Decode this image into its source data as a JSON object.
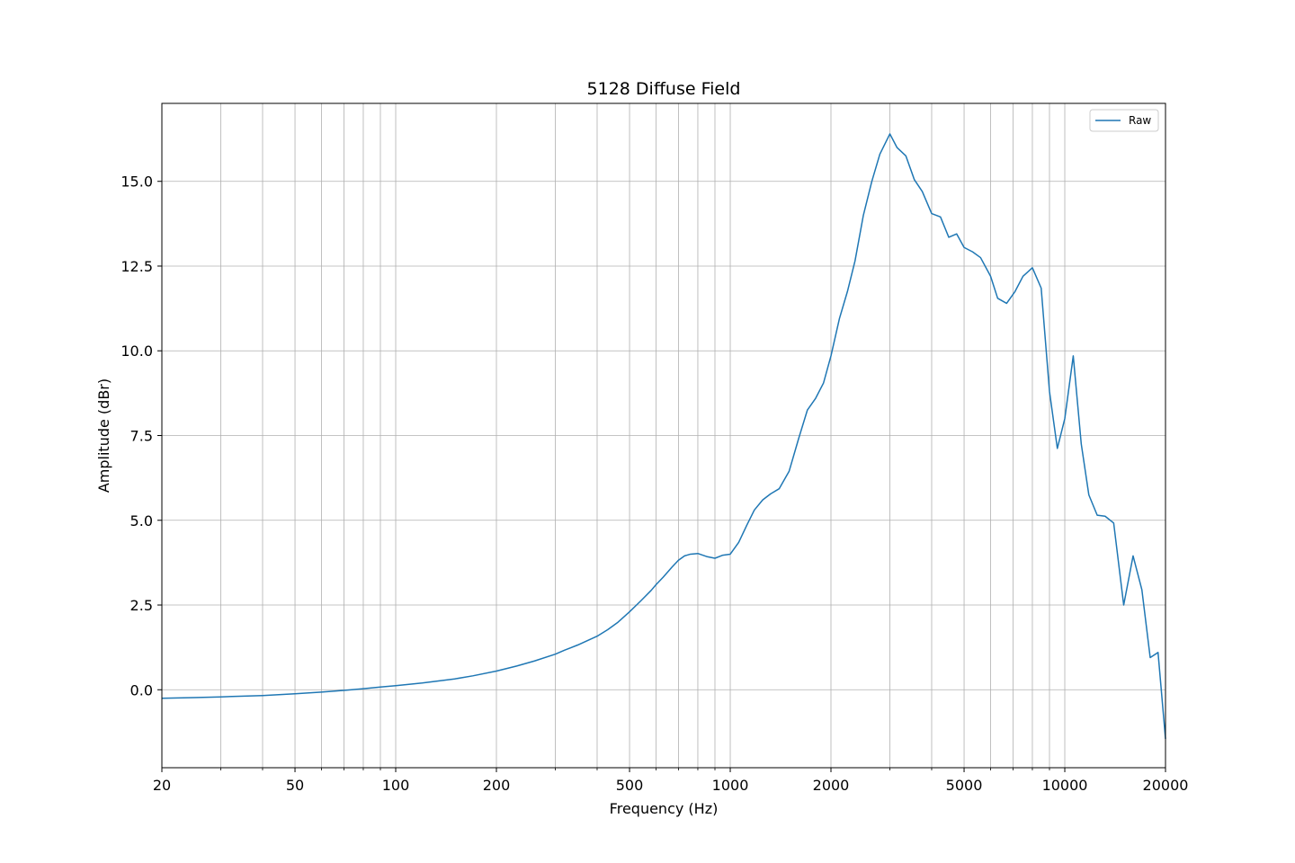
{
  "chart_data": {
    "type": "line",
    "title": "5128 Diffuse Field",
    "xlabel": "Frequency (Hz)",
    "ylabel": "Amplitude (dBr)",
    "xscale": "log",
    "xlim": [
      20,
      20000
    ],
    "ylim": [
      -2.3,
      17.3
    ],
    "grid": true,
    "legend_position": "top-right",
    "x_tick_labels": [
      "20",
      "50",
      "100",
      "200",
      "500",
      "1000",
      "2000",
      "5000",
      "10000",
      "20000"
    ],
    "x_ticks": [
      20,
      50,
      100,
      200,
      500,
      1000,
      2000,
      5000,
      10000,
      20000
    ],
    "x_minor_grid": [
      30,
      40,
      60,
      70,
      80,
      90,
      300,
      400,
      600,
      700,
      800,
      900,
      3000,
      4000,
      6000,
      7000,
      8000,
      9000
    ],
    "y_tick_labels": [
      "0.0",
      "2.5",
      "5.0",
      "7.5",
      "10.0",
      "12.5",
      "15.0"
    ],
    "y_ticks": [
      0,
      2.5,
      5,
      7.5,
      10,
      12.5,
      15
    ],
    "series": [
      {
        "name": "Raw",
        "color": "#1f77b4",
        "x": [
          20,
          25,
          30,
          40,
          50,
          60,
          70,
          80,
          90,
          100,
          120,
          150,
          170,
          200,
          230,
          260,
          300,
          320,
          350,
          400,
          430,
          460,
          500,
          540,
          580,
          600,
          630,
          670,
          700,
          730,
          760,
          800,
          850,
          900,
          950,
          1000,
          1060,
          1120,
          1180,
          1250,
          1320,
          1400,
          1500,
          1600,
          1700,
          1800,
          1900,
          2000,
          2120,
          2240,
          2360,
          2500,
          2650,
          2800,
          3000,
          3150,
          3350,
          3550,
          3750,
          4000,
          4250,
          4500,
          4750,
          5000,
          5300,
          5600,
          6000,
          6300,
          6700,
          7100,
          7500,
          8000,
          8500,
          9000,
          9500,
          10000,
          10600,
          11200,
          11800,
          12500,
          13200,
          14000,
          15000,
          16000,
          17000,
          18000,
          19000,
          20000
        ],
        "y": [
          -0.25,
          -0.23,
          -0.21,
          -0.17,
          -0.12,
          -0.07,
          -0.02,
          0.03,
          0.08,
          0.12,
          0.2,
          0.32,
          0.41,
          0.55,
          0.7,
          0.85,
          1.05,
          1.17,
          1.32,
          1.58,
          1.77,
          1.98,
          2.3,
          2.62,
          2.93,
          3.1,
          3.32,
          3.62,
          3.82,
          3.95,
          4.0,
          4.02,
          3.93,
          3.88,
          3.97,
          4.0,
          4.35,
          4.85,
          5.3,
          5.6,
          5.78,
          5.93,
          6.45,
          7.4,
          8.25,
          8.6,
          9.05,
          9.85,
          10.95,
          11.75,
          12.65,
          14.0,
          15.0,
          15.8,
          16.4,
          16.0,
          15.75,
          15.05,
          14.7,
          14.05,
          13.95,
          13.35,
          13.45,
          13.05,
          12.92,
          12.75,
          12.2,
          11.55,
          11.4,
          11.75,
          12.2,
          12.45,
          11.85,
          8.8,
          7.12,
          8.0,
          9.85,
          7.25,
          5.75,
          5.15,
          5.12,
          4.92,
          2.5,
          3.95,
          2.95,
          0.95,
          1.1,
          -1.45
        ]
      }
    ]
  }
}
